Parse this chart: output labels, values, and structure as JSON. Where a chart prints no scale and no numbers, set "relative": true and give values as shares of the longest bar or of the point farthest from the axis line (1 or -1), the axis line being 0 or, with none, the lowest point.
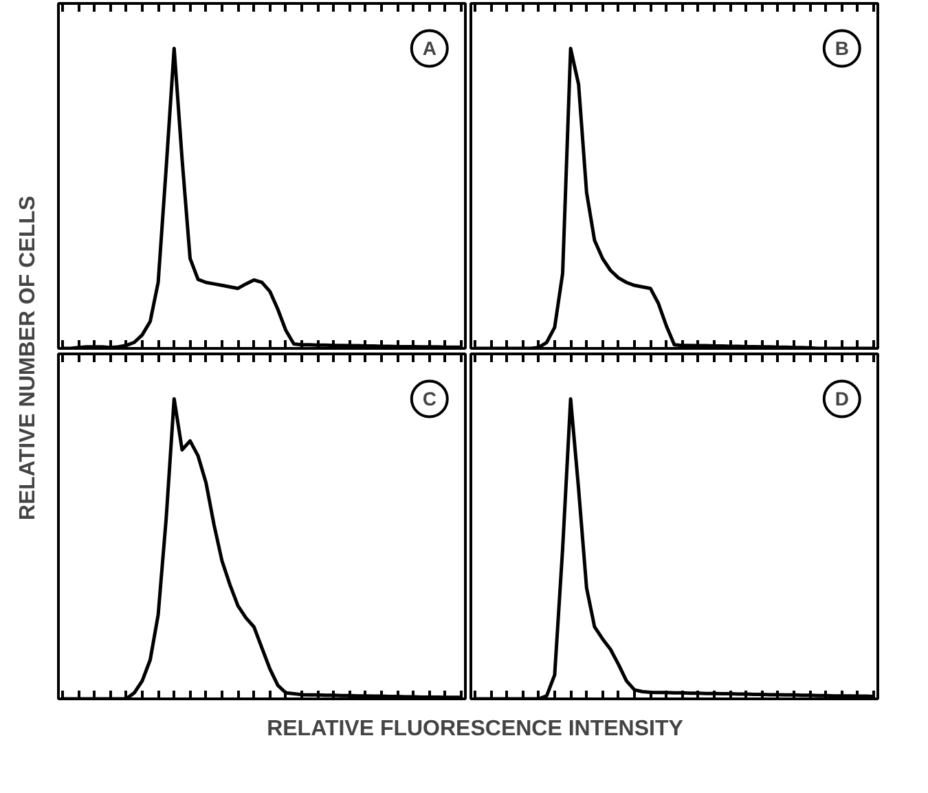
{
  "chart_data": [
    {
      "type": "line",
      "relative": true,
      "tick_labels": false,
      "ylabel": "RELATIVE NUMBER OF CELLS",
      "annotations": [
        "A"
      ],
      "categories": [
        null,
        null,
        null,
        null,
        null,
        null,
        null,
        null,
        null,
        null,
        null,
        null,
        null,
        null,
        null,
        null,
        null,
        null,
        null,
        null,
        null,
        null,
        null,
        null,
        null,
        null,
        null,
        null,
        null,
        null,
        null,
        null,
        null,
        null,
        null,
        null,
        null,
        null,
        null,
        null,
        null,
        null,
        null,
        null,
        null,
        null,
        null,
        null,
        null,
        null,
        null
      ],
      "series": [
        {
          "color": "#000000",
          "values": [
            0,
            0,
            0.003,
            0.005,
            0.005,
            0.005,
            0.003,
            0.005,
            0.01,
            0.02,
            0.045,
            0.09,
            0.22,
            0.6,
            1.0,
            0.63,
            0.3,
            0.23,
            0.22,
            0.215,
            0.21,
            0.205,
            0.2,
            0.215,
            0.228,
            0.22,
            0.19,
            0.13,
            0.06,
            0.015,
            0.012,
            0.012,
            0.011,
            0.011,
            0.01,
            0.01,
            0.009,
            0.009,
            0.008,
            0.008,
            0.007,
            0.007,
            0.006,
            0.006,
            0.006,
            0.005,
            0.005,
            0.005,
            0.004,
            0.004,
            0.004
          ]
        }
      ]
    },
    {
      "type": "line",
      "relative": true,
      "tick_labels": false,
      "annotations": [
        "B"
      ],
      "categories": [
        null,
        null,
        null,
        null,
        null,
        null,
        null,
        null,
        null,
        null,
        null,
        null,
        null,
        null,
        null,
        null,
        null,
        null,
        null,
        null,
        null,
        null,
        null,
        null,
        null,
        null,
        null,
        null,
        null,
        null,
        null,
        null,
        null,
        null,
        null,
        null,
        null,
        null,
        null,
        null,
        null,
        null,
        null,
        null,
        null,
        null,
        null,
        null,
        null,
        null,
        null
      ],
      "series": [
        {
          "color": "#000000",
          "values": [
            0,
            0,
            0,
            0,
            0,
            0,
            0,
            0,
            0.003,
            0.02,
            0.07,
            0.25,
            1.0,
            0.88,
            0.52,
            0.36,
            0.3,
            0.26,
            0.235,
            0.22,
            0.21,
            0.205,
            0.2,
            0.15,
            0.075,
            0.012,
            0.01,
            0.01,
            0.009,
            0.009,
            0.008,
            0.008,
            0.007,
            0.007,
            0.006,
            0.006,
            0.005,
            0.005,
            0.004,
            0.004,
            0.003,
            0.003,
            0.002,
            0,
            0,
            0,
            0,
            0,
            0,
            0,
            0
          ]
        }
      ]
    },
    {
      "type": "line",
      "relative": true,
      "tick_labels": false,
      "xlabel": "RELATIVE FLUORESCENCE INTENSITY",
      "annotations": [
        "C"
      ],
      "categories": [
        null,
        null,
        null,
        null,
        null,
        null,
        null,
        null,
        null,
        null,
        null,
        null,
        null,
        null,
        null,
        null,
        null,
        null,
        null,
        null,
        null,
        null,
        null,
        null,
        null,
        null,
        null,
        null,
        null,
        null,
        null,
        null,
        null,
        null,
        null,
        null,
        null,
        null,
        null,
        null,
        null,
        null,
        null,
        null,
        null,
        null,
        null,
        null,
        null,
        null,
        null
      ],
      "series": [
        {
          "color": "#000000",
          "values": [
            0,
            0,
            0,
            0,
            0,
            0,
            0,
            0,
            0,
            0.02,
            0.06,
            0.13,
            0.28,
            0.6,
            1.0,
            0.83,
            0.86,
            0.81,
            0.72,
            0.58,
            0.46,
            0.38,
            0.31,
            0.27,
            0.24,
            0.17,
            0.1,
            0.045,
            0.02,
            0.017,
            0.014,
            0.013,
            0.013,
            0.012,
            0.012,
            0.011,
            0.011,
            0.01,
            0.01,
            0.009,
            0.009,
            0.008,
            0.008,
            0.007,
            0.007,
            0.006,
            0.006,
            0.006,
            0.005,
            0.005,
            0.005
          ]
        }
      ]
    },
    {
      "type": "line",
      "relative": true,
      "tick_labels": false,
      "annotations": [
        "D"
      ],
      "categories": [
        null,
        null,
        null,
        null,
        null,
        null,
        null,
        null,
        null,
        null,
        null,
        null,
        null,
        null,
        null,
        null,
        null,
        null,
        null,
        null,
        null,
        null,
        null,
        null,
        null,
        null,
        null,
        null,
        null,
        null,
        null,
        null,
        null,
        null,
        null,
        null,
        null,
        null,
        null,
        null,
        null,
        null,
        null,
        null,
        null,
        null,
        null,
        null,
        null,
        null,
        null
      ],
      "series": [
        {
          "color": "#000000",
          "values": [
            0,
            0,
            0,
            0,
            0,
            0,
            0,
            0,
            0,
            0.01,
            0.08,
            0.5,
            1.0,
            0.7,
            0.37,
            0.24,
            0.2,
            0.165,
            0.115,
            0.06,
            0.03,
            0.024,
            0.022,
            0.021,
            0.021,
            0.02,
            0.02,
            0.019,
            0.019,
            0.018,
            0.018,
            0.017,
            0.017,
            0.016,
            0.016,
            0.015,
            0.015,
            0.014,
            0.014,
            0.013,
            0.013,
            0.012,
            0.012,
            0.011,
            0.011,
            0.01,
            0.01,
            0.01,
            0.009,
            0.009,
            0.008
          ]
        }
      ]
    }
  ]
}
